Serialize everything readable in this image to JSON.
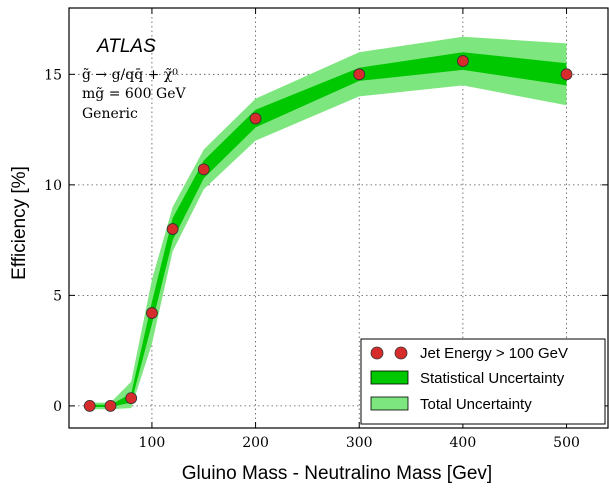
{
  "chart_data": {
    "type": "line",
    "xlabel": "Gluino Mass - Neutralino Mass [Gev]",
    "ylabel": "Efficiency [%]",
    "xlim": [
      20,
      540
    ],
    "ylim": [
      -1,
      18
    ],
    "grid": true,
    "legend_position": "bottom-right",
    "x_ticks": [
      100,
      200,
      300,
      400,
      500
    ],
    "y_ticks": [
      0,
      5,
      10,
      15
    ],
    "series": [
      {
        "name": "Jet Energy > 100 GeV",
        "marker": "circle",
        "color": "#d62c2c",
        "x": [
          40,
          60,
          80,
          100,
          120,
          150,
          200,
          300,
          400,
          500
        ],
        "y": [
          0.0,
          0.0,
          0.35,
          4.2,
          8.0,
          10.7,
          13.0,
          15.0,
          15.6,
          15.0
        ]
      },
      {
        "name": "Statistical Uncertainty",
        "type": "band",
        "color": "#00c800",
        "x": [
          40,
          60,
          80,
          100,
          120,
          150,
          200,
          300,
          400,
          500
        ],
        "lower": [
          -0.05,
          -0.05,
          0.15,
          3.7,
          7.5,
          10.3,
          12.6,
          14.7,
          15.2,
          14.5
        ],
        "upper": [
          0.05,
          0.05,
          0.55,
          4.7,
          8.5,
          11.1,
          13.4,
          15.3,
          16.0,
          15.5
        ]
      },
      {
        "name": "Total Uncertainty",
        "type": "band",
        "color": "#7ee67e",
        "x": [
          40,
          60,
          80,
          100,
          120,
          150,
          200,
          300,
          400,
          500
        ],
        "lower": [
          -0.15,
          -0.15,
          -0.1,
          2.8,
          7.0,
          9.8,
          12.0,
          14.0,
          14.5,
          13.6
        ],
        "upper": [
          0.15,
          0.15,
          1.1,
          5.7,
          9.0,
          11.6,
          13.9,
          16.0,
          16.7,
          16.4
        ]
      }
    ],
    "annotations": {
      "title": "ATLAS",
      "line1": "g̃ → g/qq̄ + χ̃⁰",
      "line2": "mg̃ = 600 GeV",
      "line3": "Generic"
    }
  }
}
